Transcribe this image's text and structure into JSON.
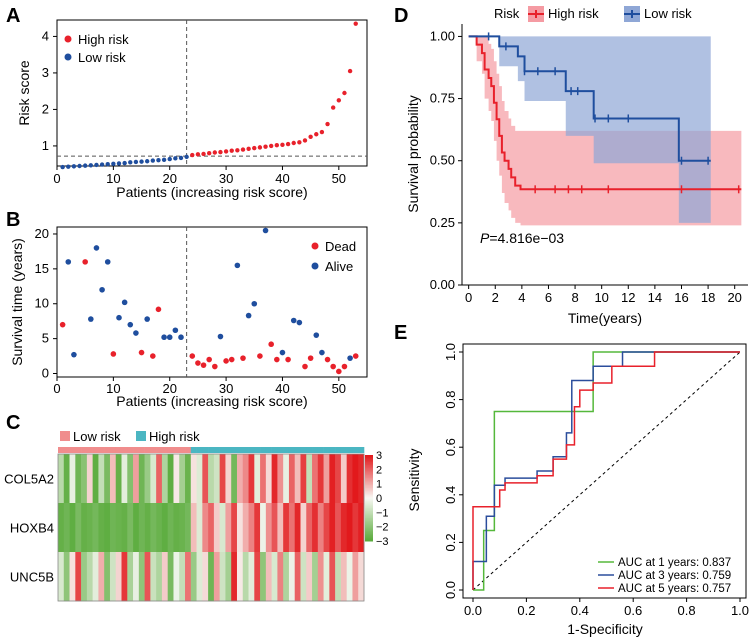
{
  "panel_letters": {
    "a": "A",
    "b": "B",
    "c": "C",
    "d": "D",
    "e": "E"
  },
  "colors": {
    "high": "#e8212b",
    "low": "#1f4e9e",
    "dead": "#e8212b",
    "alive": "#1f4e9e",
    "heat_high": "#e2191c",
    "heat_mid": "#f8f8f4",
    "heat_low": "#5aab3c",
    "bar_low": "#f08d8d",
    "bar_high": "#4bb6c2",
    "ribbon_high": "#f59ba3",
    "ribbon_low": "#8fa7d6",
    "roc_1": "#55b83b",
    "roc_3": "#2b4d9c",
    "roc_5": "#e8212b"
  },
  "chart_data": [
    {
      "id": "A",
      "type": "scatter",
      "title": "",
      "xlabel": "Patients (increasing risk score)",
      "ylabel": "Risk score",
      "xlim": [
        0,
        55
      ],
      "ylim": [
        0.45,
        4.45
      ],
      "xticks": [
        0,
        10,
        20,
        30,
        40,
        50
      ],
      "yticks": [
        1,
        2,
        3,
        4
      ],
      "cutoff_index": 23,
      "cutoff_value": 0.72,
      "legend": [
        "High risk",
        "Low risk"
      ],
      "legend_position": "top-left",
      "series": [
        {
          "name": "Low risk",
          "x": [
            1,
            2,
            3,
            4,
            5,
            6,
            7,
            8,
            9,
            10,
            11,
            12,
            13,
            14,
            15,
            16,
            17,
            18,
            19,
            20,
            21,
            22,
            23
          ],
          "values": [
            0.42,
            0.43,
            0.44,
            0.45,
            0.46,
            0.47,
            0.48,
            0.49,
            0.5,
            0.51,
            0.52,
            0.53,
            0.55,
            0.56,
            0.57,
            0.58,
            0.6,
            0.61,
            0.62,
            0.64,
            0.66,
            0.67,
            0.7
          ]
        },
        {
          "name": "High risk",
          "x": [
            24,
            25,
            26,
            27,
            28,
            29,
            30,
            31,
            32,
            33,
            34,
            35,
            36,
            37,
            38,
            39,
            40,
            41,
            42,
            43,
            44,
            45,
            46,
            47,
            48,
            49,
            50,
            51,
            52,
            53
          ],
          "values": [
            0.75,
            0.77,
            0.78,
            0.8,
            0.82,
            0.83,
            0.85,
            0.87,
            0.88,
            0.9,
            0.92,
            0.94,
            0.96,
            0.98,
            1.0,
            1.02,
            1.03,
            1.05,
            1.08,
            1.1,
            1.15,
            1.25,
            1.32,
            1.38,
            1.6,
            2.05,
            2.25,
            2.45,
            3.05,
            4.35
          ]
        }
      ]
    },
    {
      "id": "B",
      "type": "scatter",
      "title": "",
      "xlabel": "Patients (increasing risk score)",
      "ylabel": "Survival time (years)",
      "xlim": [
        0,
        55
      ],
      "ylim": [
        -0.5,
        21
      ],
      "xticks": [
        0,
        10,
        20,
        30,
        40,
        50
      ],
      "yticks": [
        0,
        5,
        10,
        15,
        20
      ],
      "cutoff_index": 23,
      "legend": [
        "Dead",
        "Alive"
      ],
      "legend_position": "top-right",
      "series": [
        {
          "name": "Dead",
          "x": [
            1,
            5,
            10,
            15,
            17,
            18,
            24,
            25,
            26,
            27,
            28,
            30,
            31,
            33,
            36,
            38,
            39,
            41,
            44,
            45,
            48,
            49,
            50,
            51,
            53
          ],
          "values": [
            7.0,
            16.0,
            2.8,
            3.0,
            2.5,
            9.2,
            2.5,
            1.5,
            1.2,
            2.0,
            1.0,
            1.8,
            2.0,
            2.2,
            2.5,
            4.2,
            2.0,
            2.0,
            1.0,
            2.2,
            2.0,
            1.0,
            0.3,
            1.0,
            2.5
          ]
        },
        {
          "name": "Alive",
          "x": [
            2,
            3,
            6,
            7,
            8,
            9,
            11,
            12,
            13,
            14,
            16,
            19,
            20,
            21,
            22,
            29,
            32,
            34,
            35,
            37,
            40,
            42,
            43,
            46,
            47,
            52
          ],
          "values": [
            16.0,
            2.7,
            7.8,
            18.0,
            12.0,
            16.0,
            8.0,
            10.2,
            7.0,
            5.8,
            7.8,
            5.2,
            5.2,
            6.2,
            5.2,
            5.3,
            15.5,
            8.3,
            10.0,
            20.5,
            3.0,
            7.6,
            7.3,
            5.5,
            3.0,
            2.2
          ]
        }
      ]
    },
    {
      "id": "C",
      "type": "heatmap",
      "title": "",
      "rows": [
        "COL5A2",
        "HOXB4",
        "UNC5B"
      ],
      "legend": [
        "Low risk",
        "High risk"
      ],
      "group_counts": {
        "low": 23,
        "high": 30
      },
      "scale_ticks": [
        "3",
        "2",
        "1",
        "0",
        "−1",
        "−2",
        "−3"
      ],
      "values": [
        [
          -1.2,
          -2.8,
          -0.3,
          -2.6,
          -2.1,
          0.5,
          -2.9,
          -1.0,
          -2.4,
          0.8,
          -2.8,
          -0.4,
          -2.2,
          1.2,
          -2.6,
          -1.8,
          -0.6,
          2.0,
          -1.4,
          -2.9,
          0.2,
          -1.6,
          -2.7,
          0.3,
          -0.5,
          2.2,
          -1.2,
          -0.8,
          2.4,
          0.5,
          -2.5,
          1.0,
          1.5,
          2.6,
          -0.4,
          1.8,
          0.4,
          2.8,
          1.4,
          -0.3,
          2.0,
          0.8,
          2.5,
          -1.0,
          1.8,
          2.6,
          1.2,
          2.9,
          2.4,
          0.6,
          2.7,
          3.0,
          2.8
        ],
        [
          -2.8,
          -2.6,
          -2.9,
          -2.4,
          -2.8,
          -2.7,
          -2.5,
          -2.8,
          -2.9,
          -2.6,
          -2.7,
          -2.8,
          -2.4,
          -2.9,
          -2.6,
          -2.8,
          -2.5,
          -2.7,
          -2.9,
          -2.6,
          -2.8,
          -2.7,
          -2.5,
          0.8,
          -0.5,
          1.5,
          2.0,
          0.6,
          -0.6,
          1.2,
          2.4,
          0.3,
          1.0,
          1.6,
          2.6,
          -0.2,
          1.4,
          2.2,
          0.8,
          2.6,
          1.8,
          2.8,
          0.5,
          2.0,
          2.7,
          1.6,
          2.4,
          2.9,
          2.2,
          2.8,
          3.0,
          2.6,
          2.9
        ],
        [
          -0.6,
          -2.0,
          0.3,
          2.4,
          -1.8,
          -1.2,
          -0.4,
          1.0,
          -2.2,
          -0.8,
          0.5,
          2.6,
          -1.5,
          -0.3,
          -2.0,
          2.2,
          -0.9,
          -1.4,
          0.6,
          -2.4,
          -0.2,
          -1.0,
          1.8,
          -1.8,
          -0.5,
          0.4,
          -2.6,
          1.2,
          -0.8,
          -1.6,
          2.8,
          0.2,
          -1.2,
          -0.4,
          2.4,
          -2.0,
          0.8,
          -0.6,
          1.6,
          -1.4,
          -0.2,
          2.0,
          -0.8,
          0.6,
          -1.6,
          1.4,
          -0.4,
          2.2,
          -1.0,
          0.8,
          -0.2,
          1.2,
          0.4
        ]
      ]
    },
    {
      "id": "D",
      "type": "line",
      "subtype": "kaplan-meier",
      "title": "",
      "xlabel": "Time(years)",
      "ylabel": "Survival probability",
      "xlim": [
        -0.5,
        21
      ],
      "ylim": [
        0,
        1.05
      ],
      "xticks": [
        0,
        2,
        4,
        6,
        8,
        10,
        12,
        14,
        16,
        18,
        20
      ],
      "yticks": [
        0.0,
        0.25,
        0.5,
        0.75,
        1.0
      ],
      "ytick_labels": [
        "0.00",
        "0.25",
        "0.50",
        "0.75",
        "1.00"
      ],
      "legend_title": "Risk",
      "legend": [
        "High risk",
        "Low risk"
      ],
      "legend_position": "top",
      "annotation": "P=4.816e−03",
      "annotation_italic": "P",
      "annotation_rest": "=4.816e−03",
      "series": [
        {
          "name": "High risk",
          "steps": [
            [
              0,
              1.0
            ],
            [
              0.6,
              0.967
            ],
            [
              1.0,
              0.933
            ],
            [
              1.2,
              0.867
            ],
            [
              1.5,
              0.833
            ],
            [
              1.7,
              0.8
            ],
            [
              1.9,
              0.733
            ],
            [
              2.1,
              0.667
            ],
            [
              2.3,
              0.6
            ],
            [
              2.5,
              0.533
            ],
            [
              2.7,
              0.5
            ],
            [
              3.0,
              0.467
            ],
            [
              3.2,
              0.433
            ],
            [
              3.5,
              0.4
            ],
            [
              3.9,
              0.385
            ],
            [
              20.5,
              0.385
            ]
          ],
          "upper": [
            [
              0,
              1.0
            ],
            [
              0.6,
              1.0
            ],
            [
              1.0,
              1.0
            ],
            [
              1.2,
              1.0
            ],
            [
              1.5,
              0.97
            ],
            [
              1.7,
              0.95
            ],
            [
              1.9,
              0.9
            ],
            [
              2.1,
              0.85
            ],
            [
              2.3,
              0.8
            ],
            [
              2.5,
              0.74
            ],
            [
              2.7,
              0.7
            ],
            [
              3.0,
              0.67
            ],
            [
              3.2,
              0.64
            ],
            [
              3.5,
              0.62
            ],
            [
              3.9,
              0.62
            ],
            [
              20.5,
              0.62
            ]
          ],
          "lower": [
            [
              0,
              1.0
            ],
            [
              0.6,
              0.9
            ],
            [
              1.0,
              0.85
            ],
            [
              1.2,
              0.75
            ],
            [
              1.5,
              0.7
            ],
            [
              1.7,
              0.66
            ],
            [
              1.9,
              0.58
            ],
            [
              2.1,
              0.5
            ],
            [
              2.3,
              0.44
            ],
            [
              2.5,
              0.37
            ],
            [
              2.7,
              0.33
            ],
            [
              3.0,
              0.3
            ],
            [
              3.2,
              0.27
            ],
            [
              3.5,
              0.25
            ],
            [
              3.9,
              0.24
            ],
            [
              20.5,
              0.24
            ]
          ],
          "censor": [
            5.0,
            6.5,
            7.5,
            8.5,
            10.5,
            16.0,
            20.3
          ]
        },
        {
          "name": "Low risk",
          "steps": [
            [
              0,
              1.0
            ],
            [
              2.3,
              0.96
            ],
            [
              3.7,
              0.92
            ],
            [
              4.2,
              0.86
            ],
            [
              7.3,
              0.78
            ],
            [
              9.4,
              0.67
            ],
            [
              15.8,
              0.5
            ],
            [
              18.2,
              0.5
            ]
          ],
          "upper": [
            [
              0,
              1.0
            ],
            [
              15.8,
              1.0
            ],
            [
              18.2,
              1.0
            ]
          ],
          "lower": [
            [
              0,
              1.0
            ],
            [
              2.3,
              0.88
            ],
            [
              3.7,
              0.82
            ],
            [
              4.2,
              0.74
            ],
            [
              7.3,
              0.6
            ],
            [
              9.4,
              0.49
            ],
            [
              15.8,
              0.25
            ],
            [
              18.2,
              0.25
            ]
          ],
          "censor": [
            1.5,
            2.8,
            4.2,
            5.2,
            6.5,
            7.7,
            8.2,
            9.5,
            10.5,
            12.0,
            16.0,
            18.0
          ]
        }
      ]
    },
    {
      "id": "E",
      "type": "line",
      "subtype": "roc",
      "title": "",
      "xlabel": "1-Specificity",
      "ylabel": "Sensitivity",
      "xlim": [
        0,
        1
      ],
      "ylim": [
        0,
        1
      ],
      "xticks": [
        0.0,
        0.2,
        0.4,
        0.6,
        0.8,
        1.0
      ],
      "yticks": [
        0.0,
        0.2,
        0.4,
        0.6,
        0.8,
        1.0
      ],
      "tick_labels": [
        "0.0",
        "0.2",
        "0.4",
        "0.6",
        "0.8",
        "1.0"
      ],
      "legend_position": "bottom-right",
      "series": [
        {
          "name": "AUC at 1 years: 0.837",
          "points": [
            [
              0,
              0
            ],
            [
              0.04,
              0
            ],
            [
              0.04,
              0.25
            ],
            [
              0.08,
              0.25
            ],
            [
              0.08,
              0.75
            ],
            [
              0.45,
              0.75
            ],
            [
              0.45,
              1.0
            ],
            [
              1.0,
              1.0
            ]
          ]
        },
        {
          "name": "AUC at 3 years: 0.759",
          "points": [
            [
              0,
              0
            ],
            [
              0,
              0.12
            ],
            [
              0.05,
              0.12
            ],
            [
              0.05,
              0.31
            ],
            [
              0.08,
              0.31
            ],
            [
              0.08,
              0.44
            ],
            [
              0.12,
              0.44
            ],
            [
              0.12,
              0.47
            ],
            [
              0.24,
              0.47
            ],
            [
              0.24,
              0.5
            ],
            [
              0.3,
              0.5
            ],
            [
              0.3,
              0.56
            ],
            [
              0.35,
              0.56
            ],
            [
              0.35,
              0.66
            ],
            [
              0.37,
              0.66
            ],
            [
              0.37,
              0.88
            ],
            [
              0.45,
              0.88
            ],
            [
              0.45,
              0.94
            ],
            [
              0.56,
              0.94
            ],
            [
              0.56,
              1.0
            ],
            [
              1.0,
              1.0
            ]
          ]
        },
        {
          "name": "AUC at 5 years: 0.757",
          "points": [
            [
              0,
              0
            ],
            [
              0,
              0.35
            ],
            [
              0.1,
              0.35
            ],
            [
              0.1,
              0.42
            ],
            [
              0.12,
              0.42
            ],
            [
              0.12,
              0.45
            ],
            [
              0.24,
              0.45
            ],
            [
              0.24,
              0.48
            ],
            [
              0.3,
              0.48
            ],
            [
              0.3,
              0.55
            ],
            [
              0.35,
              0.55
            ],
            [
              0.35,
              0.61
            ],
            [
              0.38,
              0.61
            ],
            [
              0.38,
              0.77
            ],
            [
              0.4,
              0.77
            ],
            [
              0.4,
              0.84
            ],
            [
              0.45,
              0.84
            ],
            [
              0.45,
              0.87
            ],
            [
              0.52,
              0.87
            ],
            [
              0.52,
              0.94
            ],
            [
              0.68,
              0.94
            ],
            [
              0.68,
              1.0
            ],
            [
              1.0,
              1.0
            ]
          ]
        }
      ]
    }
  ]
}
